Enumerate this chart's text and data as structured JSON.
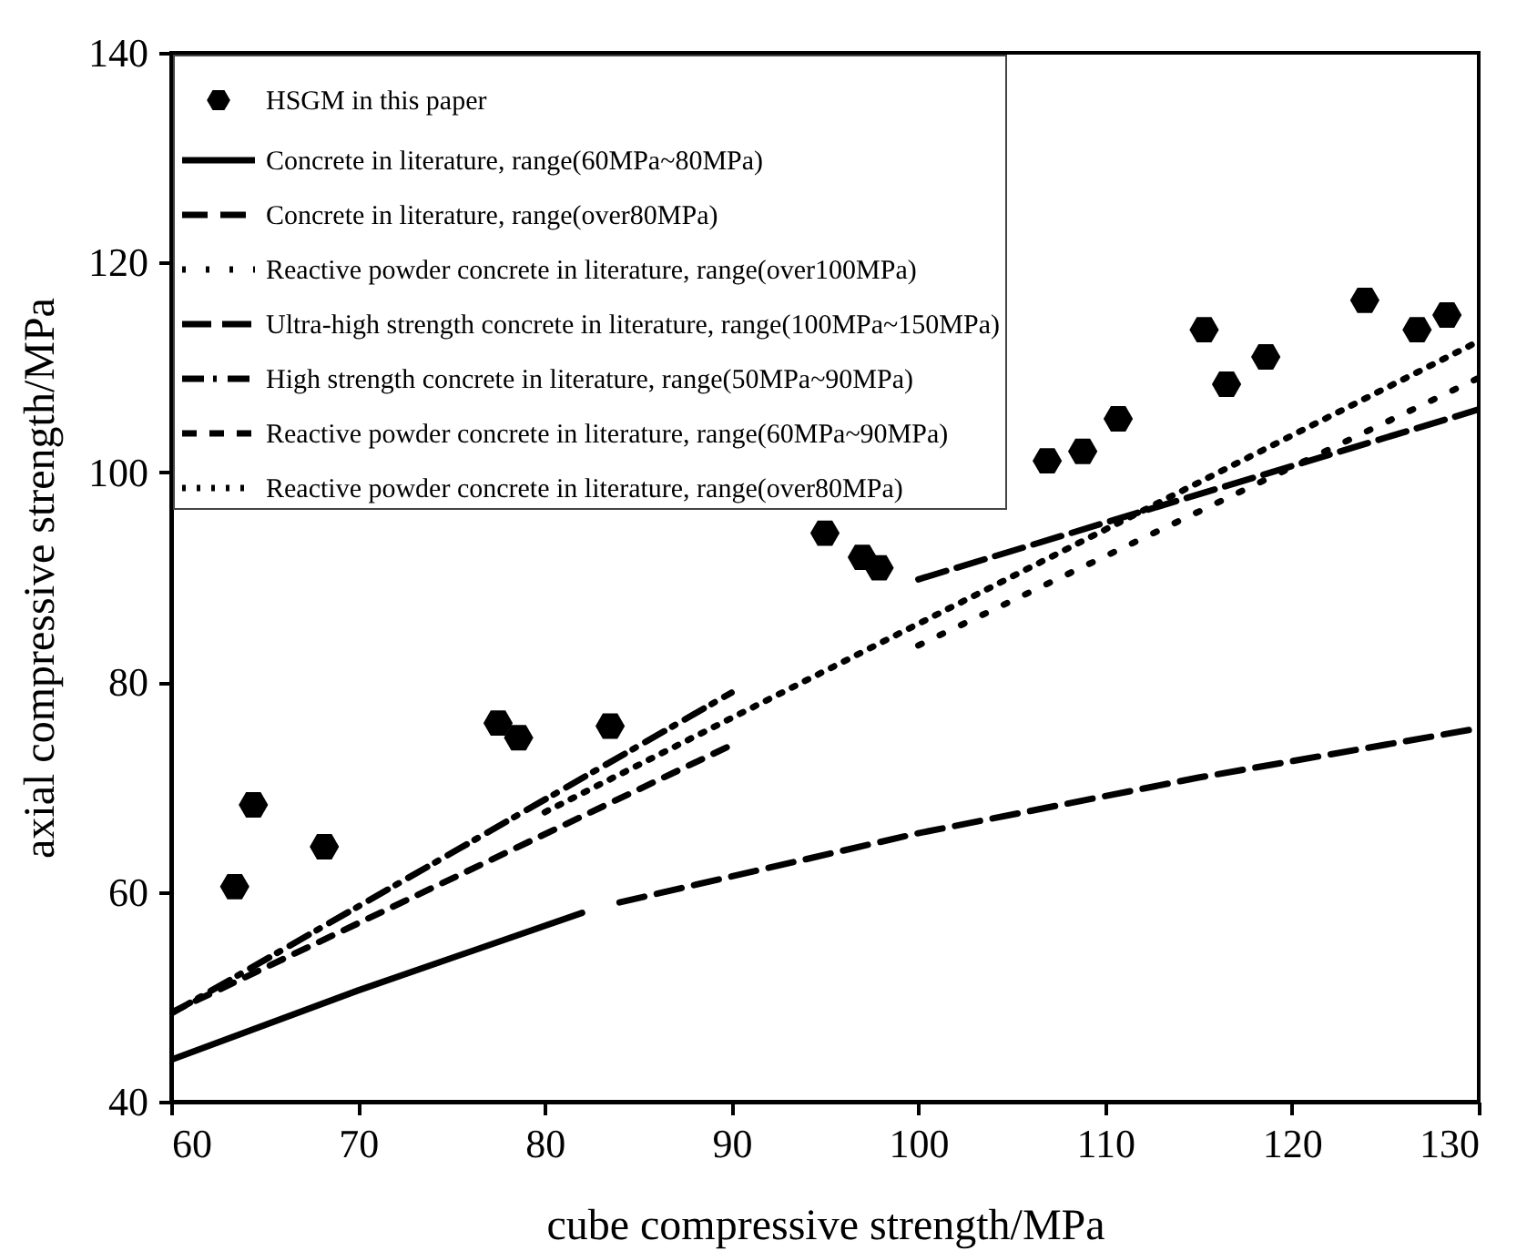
{
  "chart_data": {
    "type": "line",
    "xlabel": "cube compressive strength/MPa",
    "ylabel": "axial compressive strength/MPa",
    "xlim": [
      60,
      130
    ],
    "ylim": [
      40,
      140
    ],
    "xticks": [
      60,
      70,
      80,
      90,
      100,
      110,
      120,
      130
    ],
    "yticks": [
      40,
      60,
      80,
      100,
      120,
      140
    ],
    "grid": false,
    "legend": "top left",
    "series": [
      {
        "name": "HSGM in this paper",
        "type": "scatter",
        "color": "#000000",
        "x": [
          63.4,
          64.4,
          68.2,
          77.5,
          78.6,
          83.5,
          95.0,
          97.0,
          97.9,
          106.9,
          108.8,
          110.7,
          115.3,
          116.5,
          118.6,
          123.9,
          126.7,
          128.3
        ],
        "values": [
          60.5,
          68.3,
          64.3,
          76.1,
          74.7,
          75.8,
          94.2,
          91.9,
          90.9,
          101.1,
          102.0,
          105.1,
          113.6,
          108.4,
          111.0,
          116.4,
          113.6,
          115.0
        ]
      },
      {
        "name": "Concrete in literature, range(60MPa~80MPa)",
        "line_style": "solid",
        "color": "#000000",
        "x": [
          60,
          70,
          82
        ],
        "values": [
          44.0,
          50.6,
          58.0
        ]
      },
      {
        "name": "Concrete in literature, range(over80MPa)",
        "line_style": "dashed",
        "color": "#000000",
        "x": [
          84,
          100,
          115,
          130
        ],
        "values": [
          59.0,
          65.6,
          70.9,
          75.6
        ]
      },
      {
        "name": "Reactive powder concrete in literature, range(over100MPa)",
        "line_style": "dotted",
        "color": "#000000",
        "x": [
          100,
          130
        ],
        "values": [
          83.5,
          109
        ]
      },
      {
        "name": "Ultra-high strength concrete in literature, range(100MPa~150MPa)",
        "line_style": "dashed",
        "color": "#000000",
        "x": [
          100,
          130
        ],
        "values": [
          89.8,
          106
        ]
      },
      {
        "name": "High strength concrete in literature, range(50MPa~90MPa)",
        "line_style": "dashed",
        "color": "#000000",
        "x": [
          60,
          90
        ],
        "values": [
          48.4,
          79
        ]
      },
      {
        "name": "Reactive powder concrete in literature, range(60MPa~90MPa)",
        "line_style": "dashed",
        "color": "#000000",
        "x": [
          60,
          90
        ],
        "values": [
          48.5,
          74
        ]
      },
      {
        "name": "Reactive powder concrete in literature, range(over80MPa)",
        "line_style": "dotted",
        "color": "#000000",
        "x": [
          80,
          130
        ],
        "values": [
          67.6,
          112.5
        ]
      }
    ]
  }
}
